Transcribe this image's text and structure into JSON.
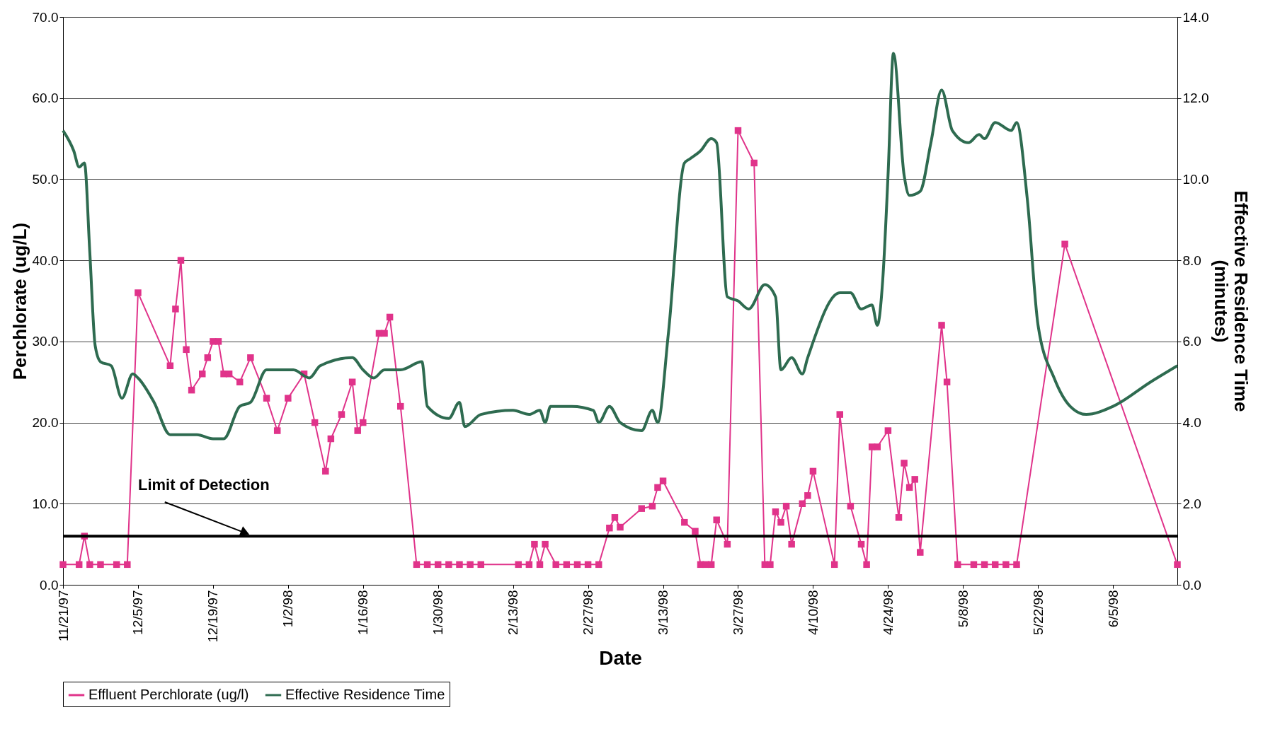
{
  "chart_data": {
    "type": "line",
    "xlabel": "Date",
    "ylabel": "Perchlorate (ug/L)",
    "y2label": "Effective Residence Time\n(minutes)",
    "xlim": [
      "1997-11-21",
      "1998-06-17"
    ],
    "xticks": [
      {
        "value": "1997-11-21",
        "label": "11/21/97"
      },
      {
        "value": "1997-12-05",
        "label": "12/5/97"
      },
      {
        "value": "1997-12-19",
        "label": "12/19/97"
      },
      {
        "value": "1998-01-02",
        "label": "1/2/98"
      },
      {
        "value": "1998-01-16",
        "label": "1/16/98"
      },
      {
        "value": "1998-01-30",
        "label": "1/30/98"
      },
      {
        "value": "1998-02-13",
        "label": "2/13/98"
      },
      {
        "value": "1998-02-27",
        "label": "2/27/98"
      },
      {
        "value": "1998-03-13",
        "label": "3/13/98"
      },
      {
        "value": "1998-03-27",
        "label": "3/27/98"
      },
      {
        "value": "1998-04-10",
        "label": "4/10/98"
      },
      {
        "value": "1998-04-24",
        "label": "4/24/98"
      },
      {
        "value": "1998-05-08",
        "label": "5/8/98"
      },
      {
        "value": "1998-05-22",
        "label": "5/22/98"
      },
      {
        "value": "1998-06-05",
        "label": "6/5/98"
      }
    ],
    "ylim": [
      0,
      70
    ],
    "yticks": [
      {
        "value": 0,
        "label": "0.0"
      },
      {
        "value": 10,
        "label": "10.0"
      },
      {
        "value": 20,
        "label": "20.0"
      },
      {
        "value": 30,
        "label": "30.0"
      },
      {
        "value": 40,
        "label": "40.0"
      },
      {
        "value": 50,
        "label": "50.0"
      },
      {
        "value": 60,
        "label": "60.0"
      },
      {
        "value": 70,
        "label": "70.0"
      }
    ],
    "y2lim": [
      0,
      14
    ],
    "y2ticks": [
      {
        "value": 0,
        "label": "0.0"
      },
      {
        "value": 2,
        "label": "2.0"
      },
      {
        "value": 4,
        "label": "4.0"
      },
      {
        "value": 6,
        "label": "6.0"
      },
      {
        "value": 8,
        "label": "8.0"
      },
      {
        "value": 10,
        "label": "10.0"
      },
      {
        "value": 12,
        "label": "12.0"
      },
      {
        "value": 14,
        "label": "14.0"
      }
    ],
    "grid": "y",
    "legend": "bottom",
    "ref_lines": [
      {
        "axis": "y",
        "value": 6,
        "label": "Limit of Detection",
        "color": "#000000",
        "line_style": "solid"
      }
    ],
    "series": [
      {
        "name": "Effluent Perchlorate (ug/l)",
        "color": "#e0338a",
        "marker": "square",
        "line_style": "solid",
        "x": [
          "1997-11-21",
          "1997-11-24",
          "1997-11-25",
          "1997-11-26",
          "1997-11-28",
          "1997-12-01",
          "1997-12-03",
          "1997-12-05",
          "1997-12-11",
          "1997-12-12",
          "1997-12-13",
          "1997-12-14",
          "1997-12-15",
          "1997-12-17",
          "1997-12-18",
          "1997-12-19",
          "1997-12-20",
          "1997-12-21",
          "1997-12-22",
          "1997-12-24",
          "1997-12-26",
          "1997-12-29",
          "1997-12-31",
          "1998-01-02",
          "1998-01-05",
          "1998-01-07",
          "1998-01-09",
          "1998-01-10",
          "1998-01-12",
          "1998-01-14",
          "1998-01-15",
          "1998-01-16",
          "1998-01-19",
          "1998-01-20",
          "1998-01-21",
          "1998-01-23",
          "1998-01-26",
          "1998-01-28",
          "1998-01-30",
          "1998-02-01",
          "1998-02-03",
          "1998-02-05",
          "1998-02-07",
          "1998-02-14",
          "1998-02-16",
          "1998-02-17",
          "1998-02-18",
          "1998-02-19",
          "1998-02-21",
          "1998-02-23",
          "1998-02-25",
          "1998-02-27",
          "1998-03-01",
          "1998-03-03",
          "1998-03-04",
          "1998-03-05",
          "1998-03-09",
          "1998-03-11",
          "1998-03-12",
          "1998-03-13",
          "1998-03-17",
          "1998-03-19",
          "1998-03-20",
          "1998-03-21",
          "1998-03-22",
          "1998-03-23",
          "1998-03-25",
          "1998-03-27",
          "1998-03-30",
          "1998-04-01",
          "1998-04-02",
          "1998-04-03",
          "1998-04-04",
          "1998-04-05",
          "1998-04-06",
          "1998-04-08",
          "1998-04-09",
          "1998-04-10",
          "1998-04-14",
          "1998-04-15",
          "1998-04-17",
          "1998-04-19",
          "1998-04-20",
          "1998-04-21",
          "1998-04-22",
          "1998-04-24",
          "1998-04-26",
          "1998-04-27",
          "1998-04-28",
          "1998-04-29",
          "1998-04-30",
          "1998-05-04",
          "1998-05-05",
          "1998-05-07",
          "1998-05-10",
          "1998-05-12",
          "1998-05-14",
          "1998-05-16",
          "1998-05-18",
          "1998-05-27",
          "1998-06-17"
        ],
        "values": [
          2.5,
          2.5,
          6,
          2.5,
          2.5,
          2.5,
          2.5,
          36,
          27,
          34,
          40,
          29,
          24,
          26,
          28,
          30,
          30,
          26,
          26,
          25,
          28,
          23,
          19,
          23,
          26,
          20,
          14,
          18,
          21,
          25,
          19,
          20,
          31,
          31,
          33,
          22,
          2.5,
          2.5,
          2.5,
          2.5,
          2.5,
          2.5,
          2.5,
          2.5,
          2.5,
          5,
          2.5,
          5,
          2.5,
          2.5,
          2.5,
          2.5,
          2.5,
          7,
          8.3,
          7.1,
          9.4,
          9.7,
          12,
          12.8,
          7.7,
          6.6,
          2.5,
          2.5,
          2.5,
          8,
          5,
          56,
          52,
          2.5,
          2.5,
          9,
          7.7,
          9.7,
          5,
          10,
          11,
          14,
          2.5,
          21,
          9.7,
          5,
          2.5,
          17,
          17,
          19,
          8.3,
          15,
          12,
          13,
          4,
          32,
          25,
          2.5,
          2.5,
          2.5,
          2.5,
          2.5,
          2.5,
          42,
          2.5
        ]
      },
      {
        "name": "Effective Residence Time",
        "color": "#2e6b50",
        "marker": "none",
        "line_style": "solid",
        "axis": "y2",
        "x": [
          "1997-11-21",
          "1997-11-23",
          "1997-11-24",
          "1997-11-25",
          "1997-11-26",
          "1997-11-27",
          "1997-11-28",
          "1997-11-30",
          "1997-12-02",
          "1997-12-04",
          "1997-12-05",
          "1997-12-08",
          "1997-12-11",
          "1997-12-16",
          "1997-12-19",
          "1997-12-21",
          "1997-12-24",
          "1997-12-26",
          "1997-12-29",
          "1998-01-03",
          "1998-01-06",
          "1998-01-08",
          "1998-01-14",
          "1998-01-16",
          "1998-01-18",
          "1998-01-20",
          "1998-01-23",
          "1998-01-27",
          "1998-01-28",
          "1998-02-01",
          "1998-02-03",
          "1998-02-04",
          "1998-02-07",
          "1998-02-13",
          "1998-02-16",
          "1998-02-18",
          "1998-02-19",
          "1998-02-20",
          "1998-02-24",
          "1998-02-28",
          "1998-03-01",
          "1998-03-03",
          "1998-03-05",
          "1998-03-09",
          "1998-03-11",
          "1998-03-12",
          "1998-03-14",
          "1998-03-17",
          "1998-03-18",
          "1998-03-20",
          "1998-03-22",
          "1998-03-23",
          "1998-03-25",
          "1998-03-27",
          "1998-03-29",
          "1998-04-01",
          "1998-04-03",
          "1998-04-04",
          "1998-04-06",
          "1998-04-08",
          "1998-04-09",
          "1998-04-15",
          "1998-04-17",
          "1998-04-19",
          "1998-04-21",
          "1998-04-22",
          "1998-04-23",
          "1998-04-24",
          "1998-04-25",
          "1998-04-27",
          "1998-04-28",
          "1998-04-30",
          "1998-05-02",
          "1998-05-04",
          "1998-05-06",
          "1998-05-09",
          "1998-05-11",
          "1998-05-12",
          "1998-05-14",
          "1998-05-17",
          "1998-05-18",
          "1998-05-20",
          "1998-05-22",
          "1998-05-25",
          "1998-05-28",
          "1998-05-31",
          "1998-06-05",
          "1998-06-12",
          "1998-06-17"
        ],
        "values": [
          11.2,
          10.7,
          10.3,
          10.4,
          8.2,
          5.9,
          5.5,
          5.4,
          4.6,
          5.2,
          5.1,
          4.5,
          3.7,
          3.7,
          3.6,
          3.6,
          4.4,
          4.5,
          5.3,
          5.3,
          5.1,
          5.4,
          5.6,
          5.3,
          5.1,
          5.3,
          5.3,
          5.5,
          4.4,
          4.1,
          4.5,
          3.9,
          4.2,
          4.3,
          4.2,
          4.3,
          4.0,
          4.4,
          4.4,
          4.3,
          4.0,
          4.4,
          4.0,
          3.8,
          4.3,
          4.0,
          6.2,
          10.4,
          10.5,
          10.7,
          11.0,
          10.9,
          7.1,
          7.0,
          6.8,
          7.4,
          7.1,
          5.3,
          5.6,
          5.2,
          5.6,
          7.2,
          7.2,
          6.8,
          6.9,
          6.4,
          7.5,
          10.1,
          13.1,
          10.1,
          9.6,
          9.7,
          10.9,
          12.2,
          11.2,
          10.9,
          11.1,
          11.0,
          11.4,
          11.2,
          11.4,
          9.5,
          6.4,
          5.1,
          4.4,
          4.2,
          4.4,
          5.0,
          5.4
        ]
      }
    ]
  }
}
